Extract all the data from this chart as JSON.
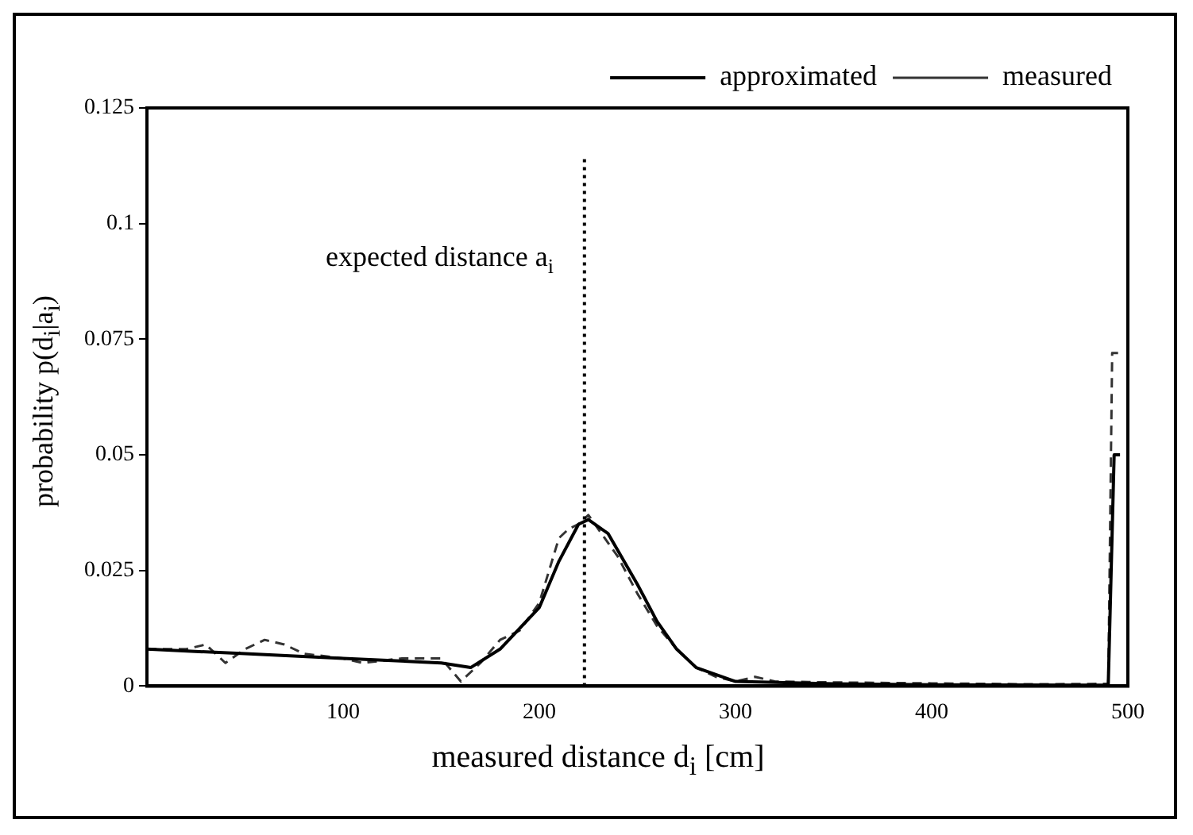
{
  "chart_data": {
    "type": "line",
    "xlabel": "measured distance d$_{i}$ [cm]",
    "ylabel": "probability p(d$_{i}$|a$_{i}$)",
    "series": [
      {
        "name": "approximated",
        "color": "#000000",
        "line_style": "solid",
        "x": [
          0,
          50,
          100,
          150,
          165,
          180,
          200,
          210,
          220,
          225,
          235,
          250,
          260,
          270,
          280,
          300,
          350,
          400,
          490,
          493,
          496
        ],
        "values": [
          0.008,
          0.007,
          0.006,
          0.005,
          0.004,
          0.008,
          0.017,
          0.027,
          0.035,
          0.036,
          0.033,
          0.022,
          0.014,
          0.008,
          0.004,
          0.001,
          0.0005,
          0.0003,
          0.0002,
          0.05,
          0.05
        ]
      },
      {
        "name": "measured",
        "color": "#333333",
        "line_style": "dashed",
        "x": [
          0,
          20,
          30,
          40,
          50,
          60,
          70,
          80,
          100,
          110,
          130,
          150,
          160,
          170,
          180,
          190,
          200,
          205,
          210,
          215,
          220,
          225,
          230,
          240,
          250,
          260,
          270,
          280,
          290,
          300,
          310,
          320,
          350,
          400,
          450,
          490,
          492,
          495
        ],
        "values": [
          0.008,
          0.008,
          0.009,
          0.005,
          0.008,
          0.01,
          0.009,
          0.007,
          0.006,
          0.005,
          0.006,
          0.006,
          0.001,
          0.005,
          0.01,
          0.012,
          0.018,
          0.025,
          0.032,
          0.034,
          0.035,
          0.037,
          0.034,
          0.028,
          0.02,
          0.013,
          0.008,
          0.004,
          0.002,
          0.001,
          0.002,
          0.001,
          0.0008,
          0.0006,
          0.0004,
          0.0005,
          0.072,
          0.072
        ]
      }
    ],
    "xlim": [
      0,
      500
    ],
    "xticks": [
      100,
      200,
      300,
      400,
      500
    ],
    "ylim": [
      0,
      0.125
    ],
    "yticks": [
      0,
      0.025,
      0.05,
      0.075,
      0.1,
      0.125
    ],
    "ref_lines": [
      {
        "axis": "x",
        "value": 223,
        "label": "expected distance a$_{i}$",
        "line_style": "dotted",
        "color": "#000000"
      }
    ],
    "grid": false,
    "legend": "top right",
    "marker": "none"
  }
}
